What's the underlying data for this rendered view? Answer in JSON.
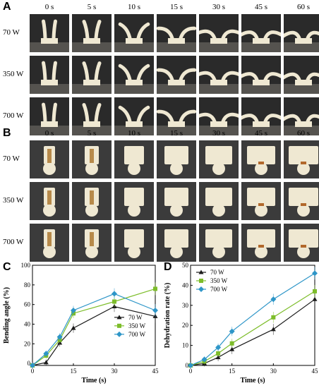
{
  "panels": {
    "A": {
      "letter": "A",
      "times": [
        "0 s",
        "5 s",
        "10 s",
        "15 s",
        "30 s",
        "45 s",
        "60 s"
      ],
      "rows": [
        "70 W",
        "350 W",
        "700 W"
      ]
    },
    "B": {
      "letter": "B",
      "times": [
        "0 s",
        "5 s",
        "10 s",
        "15 s",
        "30 s",
        "45 s",
        "60 s"
      ],
      "rows": [
        "70 W",
        "350 W",
        "700 W"
      ]
    },
    "C": {
      "letter": "C"
    },
    "D": {
      "letter": "D"
    }
  },
  "colors": {
    "w70": "#1a1a1a",
    "w350": "#7dbd2a",
    "w700": "#2e96c8"
  },
  "chart_data": [
    {
      "type": "line",
      "panel": "C",
      "xlabel": "Time (s)",
      "ylabel": "Bending angle (%)",
      "xlim": [
        0,
        45
      ],
      "ylim": [
        -2,
        100
      ],
      "xticks": [
        0,
        15,
        30,
        45
      ],
      "yticks": [
        0,
        20,
        40,
        60,
        80,
        100
      ],
      "legend_position": "center-right",
      "series": [
        {
          "name": "70 W",
          "color": "#1a1a1a",
          "marker": "triangle",
          "x": [
            0,
            5,
            10,
            15,
            30,
            45
          ],
          "y": [
            -2,
            1,
            21,
            36,
            58,
            48
          ]
        },
        {
          "name": "350 W",
          "color": "#7dbd2a",
          "marker": "square",
          "x": [
            0,
            5,
            10,
            15,
            30,
            45
          ],
          "y": [
            -2,
            8,
            24,
            51,
            63,
            76
          ]
        },
        {
          "name": "700 W",
          "color": "#2e96c8",
          "marker": "diamond",
          "x": [
            0,
            5,
            10,
            15,
            30,
            45
          ],
          "y": [
            -2,
            10,
            27,
            54,
            71,
            54
          ]
        }
      ]
    },
    {
      "type": "line",
      "panel": "D",
      "xlabel": "Time (s)",
      "ylabel": "Dehydration rate (%)",
      "xlim": [
        0,
        45
      ],
      "ylim": [
        0,
        50
      ],
      "xticks": [
        0,
        15,
        30,
        45
      ],
      "yticks": [
        0,
        10,
        20,
        30,
        40,
        50
      ],
      "legend_position": "top-left",
      "series": [
        {
          "name": "70 W",
          "color": "#1a1a1a",
          "marker": "triangle",
          "x": [
            0,
            5,
            10,
            15,
            30,
            45
          ],
          "y": [
            0,
            1,
            4,
            8,
            18,
            33
          ]
        },
        {
          "name": "350 W",
          "color": "#7dbd2a",
          "marker": "square",
          "x": [
            0,
            5,
            10,
            15,
            30,
            45
          ],
          "y": [
            0,
            2,
            6,
            11,
            24,
            37
          ]
        },
        {
          "name": "700 W",
          "color": "#2e96c8",
          "marker": "diamond",
          "x": [
            0,
            5,
            10,
            15,
            30,
            45
          ],
          "y": [
            0,
            3,
            9,
            17,
            33,
            46
          ]
        }
      ]
    }
  ]
}
